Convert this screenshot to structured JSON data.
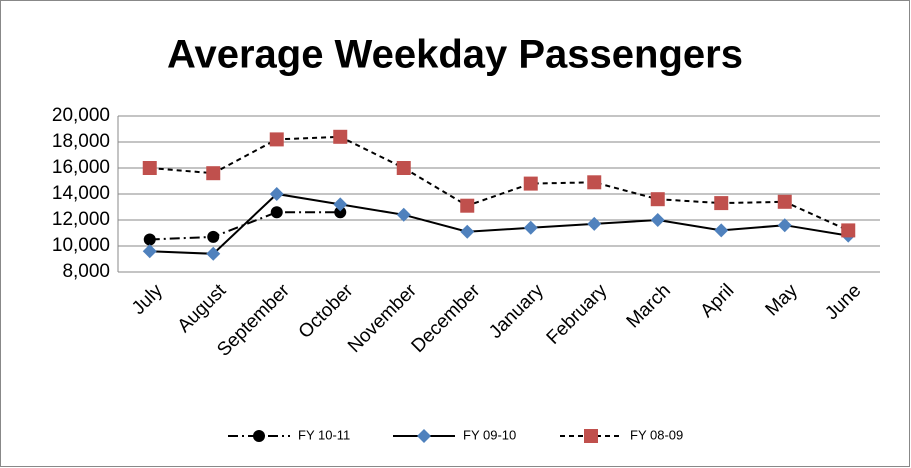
{
  "chart_data": {
    "type": "line",
    "title": "Average Weekday Passengers",
    "categories": [
      "July",
      "August",
      "September",
      "October",
      "November",
      "December",
      "January",
      "February",
      "March",
      "April",
      "May",
      "June"
    ],
    "series": [
      {
        "name": "FY 10-11",
        "color": "#000000",
        "line_color": "#000000",
        "dash": "dashdot",
        "marker": "circle",
        "values": [
          10500,
          10700,
          12600,
          12600,
          null,
          null,
          null,
          null,
          null,
          null,
          null,
          null
        ]
      },
      {
        "name": "FY 09-10",
        "color": "#4f81bd",
        "line_color": "#000000",
        "dash": "solid",
        "marker": "diamond",
        "values": [
          9600,
          9400,
          14000,
          13200,
          12400,
          11100,
          11400,
          11700,
          12000,
          11200,
          11600,
          10800
        ]
      },
      {
        "name": "FY 08-09",
        "color": "#c0504d",
        "line_color": "#000000",
        "dash": "dashed",
        "marker": "square",
        "values": [
          16000,
          15600,
          18200,
          18400,
          16000,
          13100,
          14800,
          14900,
          13600,
          13300,
          13400,
          11200
        ]
      }
    ],
    "ylim": [
      8000,
      20000
    ],
    "yticks": [
      {
        "value": 8000,
        "label": "8,000"
      },
      {
        "value": 10000,
        "label": "10,000"
      },
      {
        "value": 12000,
        "label": "12,000"
      },
      {
        "value": 14000,
        "label": "14,000"
      },
      {
        "value": 16000,
        "label": "16,000"
      },
      {
        "value": 18000,
        "label": "18,000"
      },
      {
        "value": 20000,
        "label": "20,000"
      }
    ],
    "grid": true,
    "legend": "bottom"
  }
}
